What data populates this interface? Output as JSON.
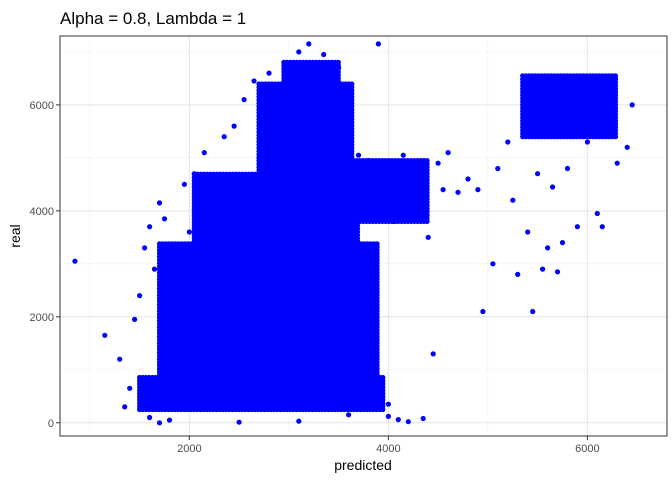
{
  "chart_data": {
    "type": "scatter",
    "title": "Alpha = 0.8, Lambda = 1",
    "xlabel": "predicted",
    "ylabel": "real",
    "xlim": [
      700,
      6800
    ],
    "ylim": [
      -250,
      7300
    ],
    "x_ticks": [
      2000,
      4000,
      6000
    ],
    "x_tick_labels": [
      "2000",
      "4000",
      "6000"
    ],
    "y_ticks": [
      0,
      2000,
      4000,
      6000
    ],
    "y_tick_labels": [
      "0",
      "2000",
      "4000",
      "6000"
    ],
    "x_minor_ticks": [
      1000,
      3000,
      5000
    ],
    "y_minor_ticks": [
      1000,
      3000,
      5000,
      7000
    ],
    "grid": true,
    "point_color": "#0000FF",
    "series": [
      {
        "points": [
          [
            850,
            3050
          ],
          [
            1150,
            1650
          ],
          [
            1300,
            1200
          ],
          [
            1350,
            300
          ],
          [
            1400,
            650
          ],
          [
            1450,
            1950
          ],
          [
            1500,
            2400
          ],
          [
            1550,
            3300
          ],
          [
            1600,
            3700
          ],
          [
            1650,
            2900
          ],
          [
            1700,
            4150
          ],
          [
            1750,
            3850
          ],
          [
            1800,
            2600
          ],
          [
            1850,
            1400
          ],
          [
            1900,
            750
          ],
          [
            1950,
            4500
          ],
          [
            2000,
            3600
          ],
          [
            2050,
            4700
          ],
          [
            2100,
            2100
          ],
          [
            2150,
            5100
          ],
          [
            2200,
            3900
          ],
          [
            2250,
            1200
          ],
          [
            2300,
            4650
          ],
          [
            2350,
            5400
          ],
          [
            2400,
            2800
          ],
          [
            2450,
            5600
          ],
          [
            2500,
            4300
          ],
          [
            2550,
            6100
          ],
          [
            2600,
            3300
          ],
          [
            2650,
            6450
          ],
          [
            2700,
            5000
          ],
          [
            2750,
            2450
          ],
          [
            2800,
            6600
          ],
          [
            2850,
            5550
          ],
          [
            2900,
            3750
          ],
          [
            2950,
            6800
          ],
          [
            3000,
            6200
          ],
          [
            3050,
            4900
          ],
          [
            3100,
            7000
          ],
          [
            3150,
            6500
          ],
          [
            3200,
            7150
          ],
          [
            3250,
            6400
          ],
          [
            3300,
            5700
          ],
          [
            3350,
            6950
          ],
          [
            3400,
            6300
          ],
          [
            3450,
            5900
          ],
          [
            3500,
            6700
          ],
          [
            3550,
            5200
          ],
          [
            3600,
            5600
          ],
          [
            3650,
            4850
          ],
          [
            3700,
            5050
          ],
          [
            3750,
            4400
          ],
          [
            3800,
            4950
          ],
          [
            3850,
            4600
          ],
          [
            3900,
            7150
          ],
          [
            3950,
            4200
          ],
          [
            4000,
            4750
          ],
          [
            4050,
            3800
          ],
          [
            4100,
            4500
          ],
          [
            4150,
            5050
          ],
          [
            4200,
            4300
          ],
          [
            4250,
            3900
          ],
          [
            4300,
            4600
          ],
          [
            4350,
            4100
          ],
          [
            4400,
            3500
          ],
          [
            4450,
            1300
          ],
          [
            4500,
            4900
          ],
          [
            4550,
            4400
          ],
          [
            4600,
            5100
          ],
          [
            4700,
            4350
          ],
          [
            4800,
            4600
          ],
          [
            4900,
            4400
          ],
          [
            4950,
            2100
          ],
          [
            5050,
            3000
          ],
          [
            5100,
            4800
          ],
          [
            5200,
            5300
          ],
          [
            5250,
            4200
          ],
          [
            5300,
            2800
          ],
          [
            5400,
            3600
          ],
          [
            5450,
            2100
          ],
          [
            5500,
            4700
          ],
          [
            5550,
            2900
          ],
          [
            5600,
            3300
          ],
          [
            5650,
            4450
          ],
          [
            5700,
            2850
          ],
          [
            5750,
            3400
          ],
          [
            5800,
            4800
          ],
          [
            5900,
            3700
          ],
          [
            6000,
            5300
          ],
          [
            6100,
            3950
          ],
          [
            6150,
            3700
          ],
          [
            6300,
            4900
          ],
          [
            6400,
            5200
          ],
          [
            6450,
            6000
          ],
          [
            4000,
            120
          ],
          [
            4100,
            60
          ],
          [
            4200,
            20
          ],
          [
            4350,
            80
          ],
          [
            4000,
            350
          ],
          [
            3600,
            150
          ],
          [
            1600,
            100
          ],
          [
            1700,
            0
          ],
          [
            1800,
            50
          ],
          [
            2500,
            10
          ],
          [
            3100,
            30
          ]
        ]
      }
    ],
    "regions": [
      {
        "x_min": 1500,
        "x_max": 3950,
        "y_min": 250,
        "y_max": 900
      },
      {
        "x_min": 1700,
        "x_max": 3900,
        "y_min": 600,
        "y_max": 3400
      },
      {
        "x_min": 2050,
        "x_max": 3700,
        "y_min": 3000,
        "y_max": 4700
      },
      {
        "x_min": 2700,
        "x_max": 3650,
        "y_min": 4400,
        "y_max": 6400
      },
      {
        "x_min": 2950,
        "x_max": 3500,
        "y_min": 6200,
        "y_max": 6850
      },
      {
        "x_min": 3650,
        "x_max": 4400,
        "y_min": 3800,
        "y_max": 5000
      },
      {
        "x_min": 5350,
        "x_max": 6300,
        "y_min": 5400,
        "y_max": 6600
      }
    ]
  }
}
